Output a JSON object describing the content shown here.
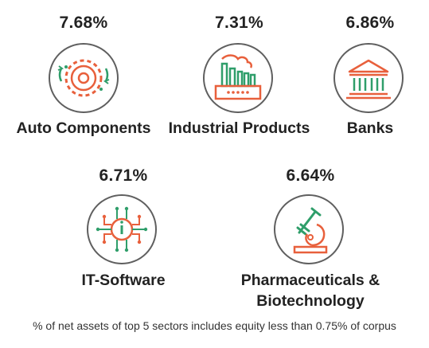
{
  "colors": {
    "accent_orange": "#e8603c",
    "accent_green": "#2f9e6a",
    "outline": "#5f5f5f"
  },
  "sectors": [
    {
      "percent": "7.68%",
      "name": "Auto Components",
      "icon": "gear-icon"
    },
    {
      "percent": "7.31%",
      "name": "Industrial Products",
      "icon": "factory-icon"
    },
    {
      "percent": "6.86%",
      "name": "Banks",
      "icon": "bank-icon"
    },
    {
      "percent": "6.71%",
      "name": "IT-Software",
      "icon": "microchip-icon"
    },
    {
      "percent": "6.64%",
      "name_line1": "Pharmaceuticals &",
      "name_line2": "Biotechnology",
      "icon": "microscope-icon"
    }
  ],
  "footnote": "% of net assets of top 5 sectors includes equity less than 0.75% of corpus"
}
